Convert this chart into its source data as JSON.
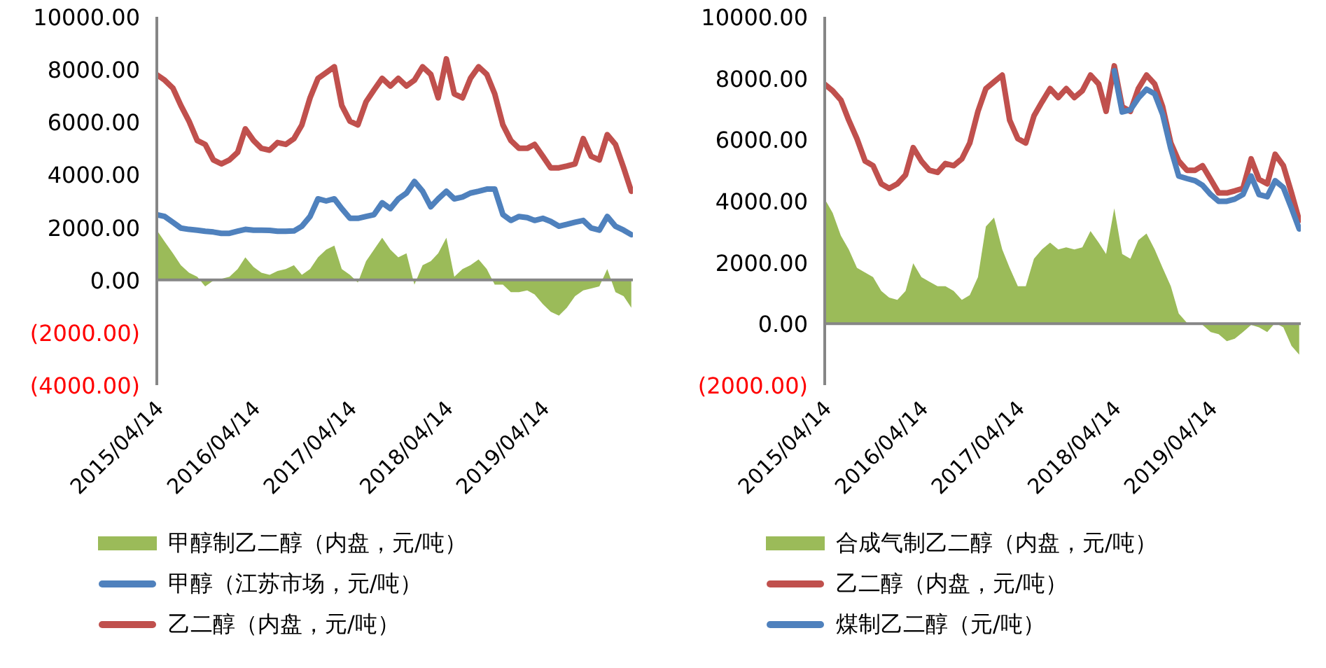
{
  "chart_data": [
    {
      "type": "line",
      "x": [
        "2015-04-14",
        "2015-05-14",
        "2015-06-14",
        "2015-07-14",
        "2015-08-14",
        "2015-09-14",
        "2015-10-14",
        "2015-11-14",
        "2015-12-14",
        "2016-01-14",
        "2016-02-14",
        "2016-03-14",
        "2016-04-14",
        "2016-05-14",
        "2016-06-14",
        "2016-07-14",
        "2016-08-14",
        "2016-09-14",
        "2016-10-14",
        "2016-11-14",
        "2016-12-14",
        "2017-01-14",
        "2017-02-14",
        "2017-03-14",
        "2017-04-14",
        "2017-05-14",
        "2017-06-14",
        "2017-07-14",
        "2017-08-14",
        "2017-09-14",
        "2017-10-14",
        "2017-11-14",
        "2017-12-14",
        "2018-01-14",
        "2018-02-14",
        "2018-03-14",
        "2018-04-14",
        "2018-05-14",
        "2018-06-14",
        "2018-07-14",
        "2018-08-14",
        "2018-09-14",
        "2018-10-14",
        "2018-11-14",
        "2018-12-14",
        "2019-01-14",
        "2019-02-14",
        "2019-03-14",
        "2019-04-14",
        "2019-05-14",
        "2019-06-14",
        "2019-07-14",
        "2019-08-14",
        "2019-09-14",
        "2019-10-14",
        "2019-11-14",
        "2019-12-14",
        "2020-01-14",
        "2020-02-14",
        "2020-03-14"
      ],
      "series": [
        {
          "name": "甲醇制乙二醇（内盘，元/吨）",
          "type": "area",
          "color": "#9bbb59",
          "values": [
            1890,
            1450,
            1010,
            560,
            270,
            120,
            -250,
            -30,
            40,
            120,
            410,
            860,
            490,
            270,
            190,
            340,
            410,
            560,
            190,
            410,
            860,
            1150,
            1300,
            410,
            190,
            -100,
            710,
            1150,
            1600,
            1150,
            860,
            1010,
            -180,
            560,
            710,
            1010,
            1600,
            120,
            410,
            560,
            780,
            410,
            -180,
            -180,
            -470,
            -470,
            -400,
            -550,
            -920,
            -1210,
            -1360,
            -1060,
            -620,
            -400,
            -330,
            -250,
            410,
            -470,
            -620,
            -1060
          ]
        },
        {
          "name": "甲醇（江苏市场，元/吨）",
          "type": "line",
          "color": "#4f81bd",
          "values": [
            2480,
            2410,
            2190,
            1970,
            1920,
            1890,
            1850,
            1820,
            1770,
            1770,
            1850,
            1920,
            1890,
            1890,
            1880,
            1850,
            1850,
            1860,
            2040,
            2410,
            3080,
            3000,
            3080,
            2710,
            2340,
            2340,
            2410,
            2480,
            2930,
            2710,
            3080,
            3300,
            3740,
            3370,
            2780,
            3080,
            3370,
            3080,
            3150,
            3300,
            3370,
            3450,
            3450,
            2480,
            2260,
            2410,
            2370,
            2260,
            2340,
            2220,
            2040,
            2110,
            2190,
            2260,
            1970,
            1890,
            2410,
            2040,
            1890,
            1720
          ]
        },
        {
          "name": "乙二醇（内盘，元/吨）",
          "type": "line",
          "color": "#c0504d",
          "values": [
            7800,
            7590,
            7290,
            6630,
            6030,
            5300,
            5150,
            4560,
            4410,
            4560,
            4850,
            5740,
            5300,
            5000,
            4930,
            5220,
            5150,
            5370,
            5890,
            6920,
            7660,
            7880,
            8100,
            6630,
            6030,
            5890,
            6770,
            7220,
            7660,
            7370,
            7660,
            7370,
            7590,
            8100,
            7810,
            6920,
            8400,
            7070,
            6920,
            7660,
            8100,
            7810,
            7070,
            5890,
            5300,
            5000,
            5000,
            5150,
            4700,
            4260,
            4260,
            4330,
            4410,
            5370,
            4700,
            4560,
            5520,
            5150,
            4260,
            3370
          ]
        }
      ],
      "xlim": [
        "2015-04-14",
        "2020-03-20"
      ],
      "xticks": [
        {
          "value": "2015-04-14",
          "label": "2015/04/14"
        },
        {
          "value": "2016-04-14",
          "label": "2016/04/14"
        },
        {
          "value": "2017-04-14",
          "label": "2017/04/14"
        },
        {
          "value": "2018-04-14",
          "label": "2018/04/14"
        },
        {
          "value": "2019-04-14",
          "label": "2019/04/14"
        }
      ],
      "ylim": [
        -4000,
        10000
      ],
      "yticks": [
        {
          "value": -4000,
          "label": "(4000.00)"
        },
        {
          "value": -2000,
          "label": "(2000.00)"
        },
        {
          "value": 0,
          "label": "0.00"
        },
        {
          "value": 2000,
          "label": "2000.00"
        },
        {
          "value": 4000,
          "label": "4000.00"
        },
        {
          "value": 6000,
          "label": "6000.00"
        },
        {
          "value": 8000,
          "label": "8000.00"
        },
        {
          "value": 10000,
          "label": "10000.00"
        }
      ],
      "ref_lines": [
        {
          "axis": "y",
          "value": 0,
          "color": "#868686"
        }
      ],
      "legend": "bottom"
    },
    {
      "type": "line",
      "x": [
        "2015-04-14",
        "2015-05-14",
        "2015-06-14",
        "2015-07-14",
        "2015-08-14",
        "2015-09-14",
        "2015-10-14",
        "2015-11-14",
        "2015-12-14",
        "2016-01-14",
        "2016-02-14",
        "2016-03-14",
        "2016-04-14",
        "2016-05-14",
        "2016-06-14",
        "2016-07-14",
        "2016-08-14",
        "2016-09-14",
        "2016-10-14",
        "2016-11-14",
        "2016-12-14",
        "2017-01-14",
        "2017-02-14",
        "2017-03-14",
        "2017-04-14",
        "2017-05-14",
        "2017-06-14",
        "2017-07-14",
        "2017-08-14",
        "2017-09-14",
        "2017-10-14",
        "2017-11-14",
        "2017-12-14",
        "2018-01-14",
        "2018-02-14",
        "2018-03-14",
        "2018-04-14",
        "2018-05-14",
        "2018-06-14",
        "2018-07-14",
        "2018-08-14",
        "2018-09-14",
        "2018-10-14",
        "2018-11-14",
        "2018-12-14",
        "2019-01-14",
        "2019-02-14",
        "2019-03-14",
        "2019-04-14",
        "2019-05-14",
        "2019-06-14",
        "2019-07-14",
        "2019-08-14",
        "2019-09-14",
        "2019-10-14",
        "2019-11-14",
        "2019-12-14",
        "2020-01-14",
        "2020-02-14",
        "2020-03-14"
      ],
      "series": [
        {
          "name": "合成气制乙二醇（内盘，元/吨）",
          "type": "area",
          "color": "#9bbb59",
          "values": [
            4060,
            3610,
            2870,
            2420,
            1820,
            1670,
            1520,
            1070,
            850,
            780,
            1070,
            1970,
            1520,
            1370,
            1220,
            1220,
            1070,
            780,
            930,
            1520,
            3170,
            3460,
            2420,
            1820,
            1220,
            1220,
            2120,
            2420,
            2640,
            2420,
            2490,
            2420,
            2490,
            3020,
            2640,
            2270,
            3760,
            2270,
            2120,
            2720,
            2940,
            2420,
            1820,
            1220,
            330,
            30,
            30,
            -40,
            -270,
            -340,
            -570,
            -490,
            -270,
            -40,
            -120,
            -270,
            30,
            -120,
            -720,
            -1010
          ]
        },
        {
          "name": "乙二醇（内盘，元/吨）",
          "type": "line",
          "color": "#c0504d",
          "values": [
            7800,
            7590,
            7290,
            6630,
            6030,
            5300,
            5150,
            4560,
            4410,
            4560,
            4850,
            5740,
            5300,
            5000,
            4930,
            5220,
            5150,
            5370,
            5890,
            6920,
            7660,
            7880,
            8100,
            6630,
            6030,
            5890,
            6770,
            7220,
            7660,
            7370,
            7660,
            7370,
            7590,
            8100,
            7810,
            6920,
            8400,
            7070,
            6920,
            7660,
            8100,
            7810,
            7070,
            5890,
            5300,
            5000,
            5000,
            5150,
            4700,
            4260,
            4260,
            4330,
            4410,
            5370,
            4700,
            4560,
            5520,
            5150,
            4260,
            3370
          ]
        },
        {
          "name": "煤制乙二醇（元/吨）",
          "type": "line",
          "color": "#4f81bd",
          "values": [
            null,
            null,
            null,
            null,
            null,
            null,
            null,
            null,
            null,
            null,
            null,
            null,
            null,
            null,
            null,
            null,
            null,
            null,
            null,
            null,
            null,
            null,
            null,
            null,
            null,
            null,
            null,
            null,
            null,
            null,
            null,
            null,
            null,
            null,
            null,
            null,
            8240,
            6900,
            6970,
            7350,
            7640,
            7490,
            6820,
            5700,
            4810,
            4730,
            4660,
            4510,
            4210,
            3990,
            3990,
            4060,
            4210,
            4810,
            4210,
            4140,
            4660,
            4440,
            3760,
            3090
          ]
        }
      ],
      "xlim": [
        "2015-04-14",
        "2020-03-20"
      ],
      "xticks": [
        {
          "value": "2015-04-14",
          "label": "2015/04/14"
        },
        {
          "value": "2016-04-14",
          "label": "2016/04/14"
        },
        {
          "value": "2017-04-14",
          "label": "2017/04/14"
        },
        {
          "value": "2018-04-14",
          "label": "2018/04/14"
        },
        {
          "value": "2019-04-14",
          "label": "2019/04/14"
        }
      ],
      "ylim": [
        -2000,
        10000
      ],
      "yticks": [
        {
          "value": -2000,
          "label": "(2000.00)"
        },
        {
          "value": 0,
          "label": "0.00"
        },
        {
          "value": 2000,
          "label": "2000.00"
        },
        {
          "value": 4000,
          "label": "4000.00"
        },
        {
          "value": 6000,
          "label": "6000.00"
        },
        {
          "value": 8000,
          "label": "8000.00"
        },
        {
          "value": 10000,
          "label": "10000.00"
        }
      ],
      "ref_lines": [
        {
          "axis": "y",
          "value": 0,
          "color": "#868686"
        }
      ],
      "legend": "bottom"
    }
  ]
}
